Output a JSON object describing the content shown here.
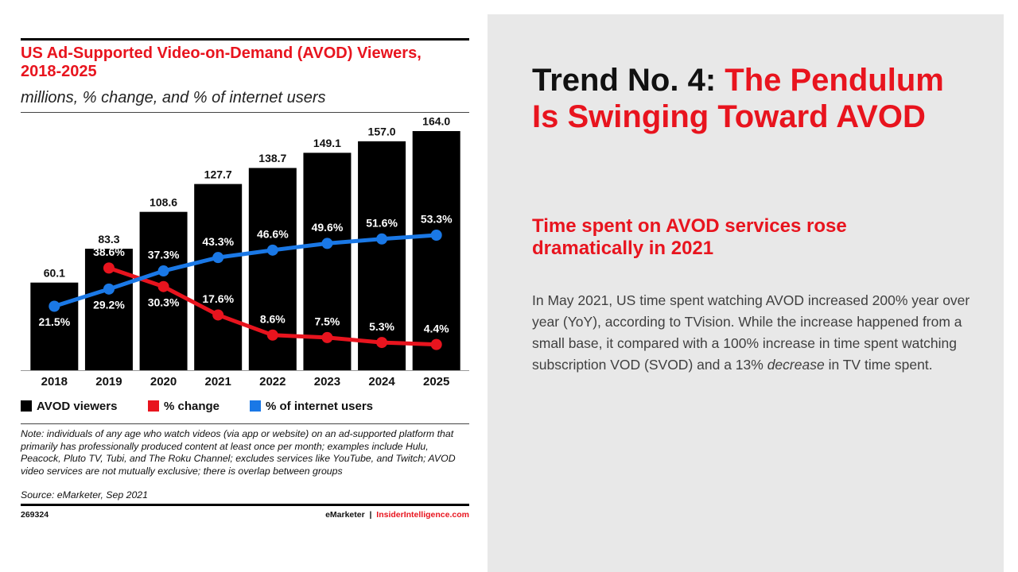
{
  "chart_data": {
    "type": "bar-line",
    "title": "US Ad-Supported Video-on-Demand (AVOD) Viewers, 2018-2025",
    "subtitle": "millions, % change, and % of internet users",
    "categories": [
      "2018",
      "2019",
      "2020",
      "2021",
      "2022",
      "2023",
      "2024",
      "2025"
    ],
    "series": [
      {
        "name": "AVOD viewers",
        "kind": "bar",
        "color": "#000000",
        "values": [
          60.1,
          83.3,
          108.6,
          127.7,
          138.7,
          149.1,
          157.0,
          164.0
        ],
        "value_labels": [
          "60.1",
          "83.3",
          "108.6",
          "127.7",
          "138.7",
          "149.1",
          "157.0",
          "164.0"
        ]
      },
      {
        "name": "% change",
        "kind": "line",
        "axis": "y2",
        "color": "#e8141e",
        "values": [
          null,
          38.6,
          30.3,
          17.6,
          8.6,
          7.5,
          5.3,
          4.4
        ],
        "value_labels": [
          null,
          "38.6%",
          "30.3%",
          "17.6%",
          "8.6%",
          "7.5%",
          "5.3%",
          "4.4%"
        ]
      },
      {
        "name": "% of internet users",
        "kind": "line",
        "axis": "y2",
        "color": "#1a78e6",
        "values": [
          21.5,
          29.2,
          37.3,
          43.3,
          46.6,
          49.6,
          51.6,
          53.3
        ],
        "value_labels": [
          "21.5%",
          "29.2%",
          "37.3%",
          "43.3%",
          "46.6%",
          "49.6%",
          "51.6%",
          "53.3%"
        ]
      }
    ],
    "note": "Note: individuals of any age who watch videos (via app or website) on an ad-supported platform that primarily has professionally produced content at least once per month; examples include Hulu, Peacock, Pluto TV, Tubi, and The Roku Channel; excludes services like YouTube, and Twitch; AVOD video services are not mutually exclusive; there is overlap between groups",
    "source": "Source: eMarketer, Sep 2021",
    "chart_id": "269324",
    "brand": "eMarketer",
    "site": "InsiderIntelligence.com"
  },
  "slide": {
    "heading_lead": "Trend No. 4:",
    "heading_rest": "The Pendulum Is Swinging Toward AVOD",
    "subheading": "Time spent on AVOD services rose dramatically in 2021",
    "body_start": "In May 2021, US time spent watching AVOD increased 200% year over year (YoY), according to TVision. While the increase happened from a small base, it compared with a 100% increase in time spent watching subscription VOD (SVOD) and a 13%",
    "body_emphasis": "decrease",
    "body_end": "in TV time spent."
  }
}
